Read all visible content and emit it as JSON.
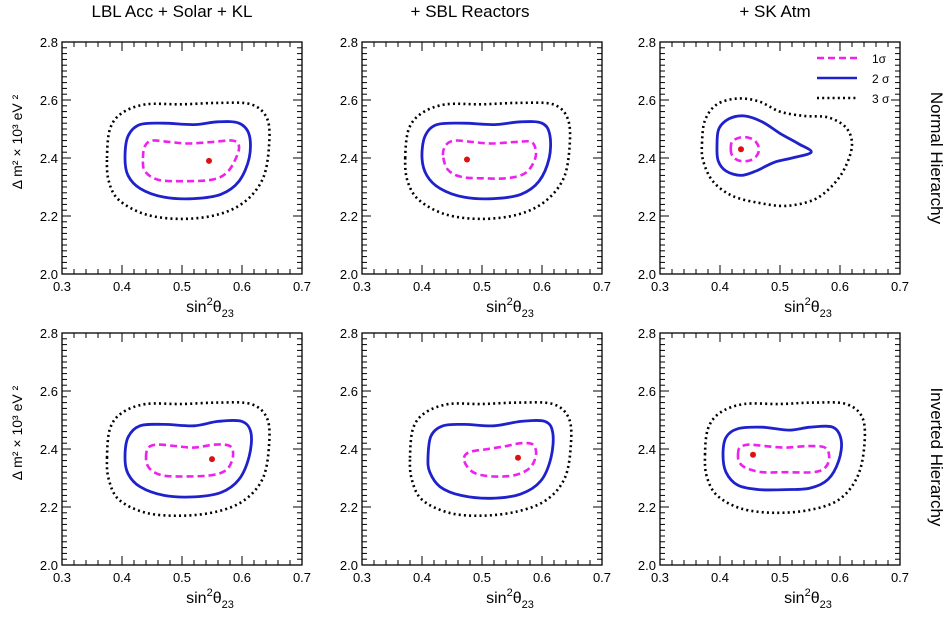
{
  "column_titles": [
    "LBL Acc + Solar + KL",
    "+ SBL Reactors",
    "+ SK Atm"
  ],
  "row_labels": [
    "Normal Hierarchy",
    "Inverted Hierarchy"
  ],
  "axes": {
    "xlabel_main": "sin",
    "xlabel_sup": "2",
    "xlabel_theta": "θ",
    "xlabel_sub": "23",
    "ylabel": "Δ m² × 10³ eV ²",
    "xlim": [
      0.3,
      0.7
    ],
    "ylim": [
      2.0,
      2.8
    ],
    "xticks": [
      "0.3",
      "0.4",
      "0.5",
      "0.6",
      "0.7"
    ],
    "yticks": [
      "2.0",
      "2.2",
      "2.4",
      "2.6",
      "2.8"
    ]
  },
  "legend": {
    "placement": "top-right of third panel in first row",
    "entries": [
      {
        "label": "1σ",
        "style": "dashed",
        "color": "#ee22ee"
      },
      {
        "label": "2 σ",
        "style": "solid",
        "color": "#1f22cc"
      },
      {
        "label": "3 σ",
        "style": "dotted",
        "color": "#000000"
      }
    ]
  },
  "colors": {
    "sigma1": "#ee22ee",
    "sigma2": "#1f22cc",
    "sigma3": "#000000",
    "best_fit": "#dd1111"
  },
  "chart_data": [
    {
      "type": "line",
      "panel": "LBL Acc + Solar + KL / Normal Hierarchy",
      "best_fit": {
        "x": 0.545,
        "y": 2.39
      },
      "contours": {
        "1sigma": [
          [
            0.435,
            2.4
          ],
          [
            0.438,
            2.44
          ],
          [
            0.45,
            2.46
          ],
          [
            0.48,
            2.455
          ],
          [
            0.51,
            2.45
          ],
          [
            0.55,
            2.455
          ],
          [
            0.585,
            2.46
          ],
          [
            0.595,
            2.44
          ],
          [
            0.59,
            2.4
          ],
          [
            0.575,
            2.35
          ],
          [
            0.55,
            2.325
          ],
          [
            0.5,
            2.32
          ],
          [
            0.46,
            2.325
          ],
          [
            0.438,
            2.355
          ],
          [
            0.435,
            2.4
          ]
        ],
        "2sigma": [
          [
            0.405,
            2.4
          ],
          [
            0.41,
            2.475
          ],
          [
            0.43,
            2.515
          ],
          [
            0.47,
            2.52
          ],
          [
            0.52,
            2.515
          ],
          [
            0.56,
            2.525
          ],
          [
            0.595,
            2.52
          ],
          [
            0.612,
            2.48
          ],
          [
            0.612,
            2.4
          ],
          [
            0.595,
            2.32
          ],
          [
            0.565,
            2.275
          ],
          [
            0.52,
            2.26
          ],
          [
            0.47,
            2.265
          ],
          [
            0.43,
            2.295
          ],
          [
            0.41,
            2.34
          ],
          [
            0.405,
            2.4
          ]
        ],
        "3sigma": [
          [
            0.375,
            2.4
          ],
          [
            0.38,
            2.5
          ],
          [
            0.4,
            2.555
          ],
          [
            0.44,
            2.585
          ],
          [
            0.5,
            2.585
          ],
          [
            0.56,
            2.59
          ],
          [
            0.615,
            2.585
          ],
          [
            0.642,
            2.535
          ],
          [
            0.645,
            2.44
          ],
          [
            0.635,
            2.33
          ],
          [
            0.605,
            2.25
          ],
          [
            0.56,
            2.205
          ],
          [
            0.5,
            2.19
          ],
          [
            0.44,
            2.205
          ],
          [
            0.395,
            2.255
          ],
          [
            0.378,
            2.32
          ],
          [
            0.375,
            2.4
          ]
        ]
      }
    },
    {
      "type": "line",
      "panel": "+ SBL Reactors / Normal Hierarchy",
      "best_fit": {
        "x": 0.475,
        "y": 2.395
      },
      "contours": {
        "1sigma": [
          [
            0.435,
            2.41
          ],
          [
            0.44,
            2.445
          ],
          [
            0.455,
            2.46
          ],
          [
            0.485,
            2.455
          ],
          [
            0.515,
            2.45
          ],
          [
            0.555,
            2.455
          ],
          [
            0.582,
            2.455
          ],
          [
            0.59,
            2.42
          ],
          [
            0.585,
            2.38
          ],
          [
            0.57,
            2.345
          ],
          [
            0.54,
            2.33
          ],
          [
            0.5,
            2.33
          ],
          [
            0.465,
            2.335
          ],
          [
            0.443,
            2.36
          ],
          [
            0.435,
            2.41
          ]
        ],
        "2sigma": [
          [
            0.4,
            2.4
          ],
          [
            0.405,
            2.475
          ],
          [
            0.425,
            2.515
          ],
          [
            0.47,
            2.52
          ],
          [
            0.52,
            2.515
          ],
          [
            0.565,
            2.525
          ],
          [
            0.6,
            2.52
          ],
          [
            0.613,
            2.48
          ],
          [
            0.612,
            2.4
          ],
          [
            0.595,
            2.32
          ],
          [
            0.565,
            2.275
          ],
          [
            0.52,
            2.26
          ],
          [
            0.47,
            2.265
          ],
          [
            0.43,
            2.295
          ],
          [
            0.408,
            2.34
          ],
          [
            0.4,
            2.4
          ]
        ],
        "3sigma": [
          [
            0.372,
            2.4
          ],
          [
            0.378,
            2.5
          ],
          [
            0.4,
            2.555
          ],
          [
            0.44,
            2.585
          ],
          [
            0.5,
            2.585
          ],
          [
            0.56,
            2.59
          ],
          [
            0.618,
            2.585
          ],
          [
            0.643,
            2.535
          ],
          [
            0.646,
            2.44
          ],
          [
            0.636,
            2.33
          ],
          [
            0.605,
            2.25
          ],
          [
            0.56,
            2.205
          ],
          [
            0.5,
            2.19
          ],
          [
            0.44,
            2.205
          ],
          [
            0.395,
            2.255
          ],
          [
            0.376,
            2.32
          ],
          [
            0.372,
            2.4
          ]
        ]
      }
    },
    {
      "type": "line",
      "panel": "+ SK Atm / Normal Hierarchy",
      "best_fit": {
        "x": 0.435,
        "y": 2.43
      },
      "contours": {
        "1sigma": [
          [
            0.418,
            2.43
          ],
          [
            0.42,
            2.455
          ],
          [
            0.432,
            2.47
          ],
          [
            0.448,
            2.47
          ],
          [
            0.46,
            2.455
          ],
          [
            0.465,
            2.43
          ],
          [
            0.46,
            2.405
          ],
          [
            0.447,
            2.39
          ],
          [
            0.43,
            2.392
          ],
          [
            0.42,
            2.41
          ],
          [
            0.418,
            2.43
          ]
        ],
        "2sigma": [
          [
            0.395,
            2.44
          ],
          [
            0.398,
            2.5
          ],
          [
            0.415,
            2.535
          ],
          [
            0.44,
            2.545
          ],
          [
            0.47,
            2.525
          ],
          [
            0.5,
            2.485
          ],
          [
            0.53,
            2.45
          ],
          [
            0.552,
            2.42
          ],
          [
            0.52,
            2.4
          ],
          [
            0.49,
            2.385
          ],
          [
            0.46,
            2.355
          ],
          [
            0.435,
            2.34
          ],
          [
            0.41,
            2.355
          ],
          [
            0.397,
            2.39
          ],
          [
            0.395,
            2.44
          ]
        ],
        "3sigma": [
          [
            0.37,
            2.45
          ],
          [
            0.375,
            2.53
          ],
          [
            0.395,
            2.585
          ],
          [
            0.43,
            2.605
          ],
          [
            0.465,
            2.595
          ],
          [
            0.5,
            2.56
          ],
          [
            0.54,
            2.545
          ],
          [
            0.58,
            2.54
          ],
          [
            0.61,
            2.505
          ],
          [
            0.62,
            2.445
          ],
          [
            0.608,
            2.365
          ],
          [
            0.585,
            2.3
          ],
          [
            0.555,
            2.255
          ],
          [
            0.51,
            2.235
          ],
          [
            0.465,
            2.245
          ],
          [
            0.42,
            2.27
          ],
          [
            0.388,
            2.32
          ],
          [
            0.372,
            2.39
          ],
          [
            0.37,
            2.45
          ]
        ]
      }
    },
    {
      "type": "line",
      "panel": "LBL Acc + Solar + KL / Inverted Hierarchy",
      "best_fit": {
        "x": 0.55,
        "y": 2.365
      },
      "contours": {
        "1sigma": [
          [
            0.44,
            2.37
          ],
          [
            0.444,
            2.405
          ],
          [
            0.46,
            2.415
          ],
          [
            0.49,
            2.41
          ],
          [
            0.52,
            2.405
          ],
          [
            0.555,
            2.415
          ],
          [
            0.58,
            2.41
          ],
          [
            0.585,
            2.375
          ],
          [
            0.575,
            2.33
          ],
          [
            0.55,
            2.31
          ],
          [
            0.5,
            2.305
          ],
          [
            0.465,
            2.31
          ],
          [
            0.445,
            2.335
          ],
          [
            0.44,
            2.37
          ]
        ],
        "2sigma": [
          [
            0.405,
            2.37
          ],
          [
            0.41,
            2.44
          ],
          [
            0.43,
            2.48
          ],
          [
            0.47,
            2.485
          ],
          [
            0.52,
            2.48
          ],
          [
            0.56,
            2.495
          ],
          [
            0.6,
            2.495
          ],
          [
            0.615,
            2.455
          ],
          [
            0.612,
            2.375
          ],
          [
            0.595,
            2.295
          ],
          [
            0.565,
            2.25
          ],
          [
            0.52,
            2.235
          ],
          [
            0.47,
            2.24
          ],
          [
            0.43,
            2.27
          ],
          [
            0.41,
            2.315
          ],
          [
            0.405,
            2.37
          ]
        ],
        "3sigma": [
          [
            0.375,
            2.37
          ],
          [
            0.38,
            2.47
          ],
          [
            0.4,
            2.525
          ],
          [
            0.44,
            2.555
          ],
          [
            0.5,
            2.555
          ],
          [
            0.56,
            2.56
          ],
          [
            0.615,
            2.555
          ],
          [
            0.642,
            2.505
          ],
          [
            0.645,
            2.41
          ],
          [
            0.635,
            2.3
          ],
          [
            0.605,
            2.225
          ],
          [
            0.56,
            2.185
          ],
          [
            0.5,
            2.17
          ],
          [
            0.44,
            2.18
          ],
          [
            0.395,
            2.225
          ],
          [
            0.378,
            2.295
          ],
          [
            0.375,
            2.37
          ]
        ]
      }
    },
    {
      "type": "line",
      "panel": "+ SBL Reactors / Inverted Hierarchy",
      "best_fit": {
        "x": 0.56,
        "y": 2.37
      },
      "contours": {
        "1sigma": [
          [
            0.47,
            2.37
          ],
          [
            0.48,
            2.39
          ],
          [
            0.51,
            2.4
          ],
          [
            0.54,
            2.41
          ],
          [
            0.565,
            2.42
          ],
          [
            0.585,
            2.415
          ],
          [
            0.59,
            2.38
          ],
          [
            0.58,
            2.335
          ],
          [
            0.555,
            2.31
          ],
          [
            0.52,
            2.305
          ],
          [
            0.49,
            2.315
          ],
          [
            0.475,
            2.34
          ],
          [
            0.47,
            2.37
          ]
        ],
        "2sigma": [
          [
            0.41,
            2.37
          ],
          [
            0.415,
            2.445
          ],
          [
            0.435,
            2.48
          ],
          [
            0.47,
            2.485
          ],
          [
            0.52,
            2.48
          ],
          [
            0.565,
            2.495
          ],
          [
            0.605,
            2.495
          ],
          [
            0.618,
            2.455
          ],
          [
            0.615,
            2.37
          ],
          [
            0.598,
            2.29
          ],
          [
            0.565,
            2.245
          ],
          [
            0.515,
            2.23
          ],
          [
            0.465,
            2.24
          ],
          [
            0.43,
            2.27
          ],
          [
            0.413,
            2.32
          ],
          [
            0.41,
            2.37
          ]
        ],
        "3sigma": [
          [
            0.38,
            2.37
          ],
          [
            0.385,
            2.47
          ],
          [
            0.405,
            2.525
          ],
          [
            0.445,
            2.555
          ],
          [
            0.5,
            2.555
          ],
          [
            0.56,
            2.56
          ],
          [
            0.618,
            2.555
          ],
          [
            0.645,
            2.505
          ],
          [
            0.648,
            2.41
          ],
          [
            0.638,
            2.3
          ],
          [
            0.608,
            2.225
          ],
          [
            0.56,
            2.185
          ],
          [
            0.5,
            2.17
          ],
          [
            0.445,
            2.18
          ],
          [
            0.4,
            2.225
          ],
          [
            0.383,
            2.295
          ],
          [
            0.38,
            2.37
          ]
        ]
      }
    },
    {
      "type": "line",
      "panel": "+ SK Atm / Inverted Hierarchy",
      "best_fit": {
        "x": 0.455,
        "y": 2.38
      },
      "contours": {
        "1sigma": [
          [
            0.43,
            2.38
          ],
          [
            0.433,
            2.405
          ],
          [
            0.448,
            2.415
          ],
          [
            0.475,
            2.41
          ],
          [
            0.51,
            2.405
          ],
          [
            0.545,
            2.41
          ],
          [
            0.575,
            2.405
          ],
          [
            0.582,
            2.37
          ],
          [
            0.575,
            2.335
          ],
          [
            0.555,
            2.32
          ],
          [
            0.51,
            2.32
          ],
          [
            0.47,
            2.32
          ],
          [
            0.443,
            2.335
          ],
          [
            0.432,
            2.355
          ],
          [
            0.43,
            2.38
          ]
        ],
        "2sigma": [
          [
            0.405,
            2.38
          ],
          [
            0.41,
            2.44
          ],
          [
            0.43,
            2.47
          ],
          [
            0.47,
            2.475
          ],
          [
            0.515,
            2.465
          ],
          [
            0.55,
            2.475
          ],
          [
            0.588,
            2.475
          ],
          [
            0.602,
            2.43
          ],
          [
            0.598,
            2.36
          ],
          [
            0.58,
            2.295
          ],
          [
            0.55,
            2.265
          ],
          [
            0.51,
            2.26
          ],
          [
            0.465,
            2.26
          ],
          [
            0.43,
            2.275
          ],
          [
            0.41,
            2.32
          ],
          [
            0.405,
            2.38
          ]
        ],
        "3sigma": [
          [
            0.375,
            2.38
          ],
          [
            0.38,
            2.47
          ],
          [
            0.4,
            2.525
          ],
          [
            0.44,
            2.555
          ],
          [
            0.5,
            2.555
          ],
          [
            0.555,
            2.56
          ],
          [
            0.61,
            2.555
          ],
          [
            0.638,
            2.505
          ],
          [
            0.64,
            2.4
          ],
          [
            0.628,
            2.3
          ],
          [
            0.598,
            2.225
          ],
          [
            0.55,
            2.19
          ],
          [
            0.49,
            2.18
          ],
          [
            0.435,
            2.195
          ],
          [
            0.395,
            2.24
          ],
          [
            0.378,
            2.305
          ],
          [
            0.375,
            2.38
          ]
        ]
      }
    }
  ]
}
